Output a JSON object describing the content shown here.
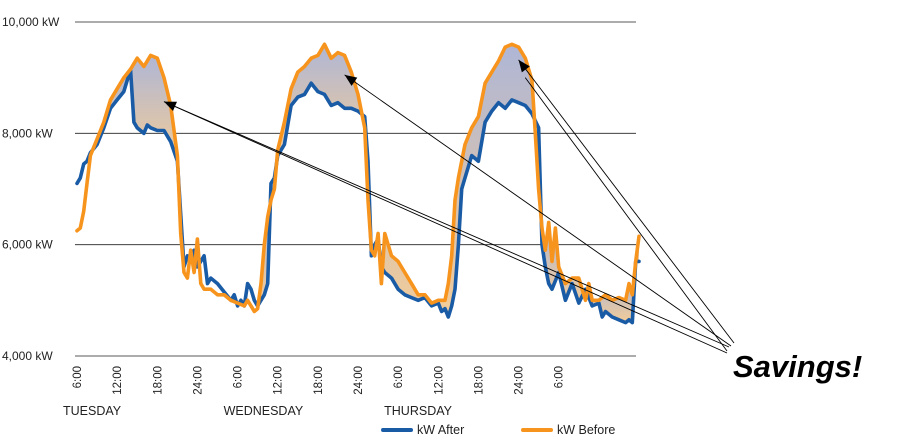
{
  "chart_data": {
    "type": "line",
    "y_tick_labels": [
      "10,000 kW",
      "8,000 kW",
      "6,000 kW",
      "4,000 kW"
    ],
    "y_ticks": [
      10000,
      8000,
      6000,
      4000
    ],
    "ylim": [
      4000,
      10000
    ],
    "x_tick_labels": [
      "6:00",
      "12:00",
      "18:00",
      "24:00",
      "6:00",
      "12:00",
      "18:00",
      "24:00",
      "6:00",
      "12:00",
      "18:00",
      "24:00",
      "6:00"
    ],
    "day_labels": [
      {
        "label": "TUESDAY",
        "tick_index": 0
      },
      {
        "label": "WEDNESDAY",
        "tick_index": 4
      },
      {
        "label": "THURSDAY",
        "tick_index": 8
      }
    ],
    "hours_range": [
      0,
      72
    ],
    "series": [
      {
        "name": "kW  After",
        "color": "#1a5ba6",
        "points": [
          [
            0,
            7100
          ],
          [
            0.5,
            7200
          ],
          [
            1,
            7450
          ],
          [
            1.5,
            7500
          ],
          [
            2,
            7650
          ],
          [
            3,
            7800
          ],
          [
            4,
            8100
          ],
          [
            5,
            8450
          ],
          [
            6,
            8600
          ],
          [
            7,
            8750
          ],
          [
            8,
            9150
          ],
          [
            8.5,
            8200
          ],
          [
            9,
            8100
          ],
          [
            10,
            8000
          ],
          [
            10.5,
            8150
          ],
          [
            11,
            8100
          ],
          [
            12,
            8050
          ],
          [
            13,
            8050
          ],
          [
            14,
            7850
          ],
          [
            15,
            7500
          ],
          [
            16,
            5600
          ],
          [
            16.5,
            5800
          ],
          [
            17,
            5700
          ],
          [
            17.5,
            5900
          ],
          [
            18,
            5600
          ],
          [
            19,
            5800
          ],
          [
            19.5,
            5300
          ],
          [
            20,
            5400
          ],
          [
            21,
            5300
          ],
          [
            22,
            5150
          ],
          [
            23,
            5000
          ],
          [
            23.5,
            5100
          ],
          [
            24,
            4900
          ],
          [
            24.5,
            5000
          ],
          [
            25,
            4900
          ],
          [
            25.5,
            5300
          ],
          [
            26,
            5200
          ],
          [
            26.5,
            5000
          ],
          [
            27,
            4900
          ],
          [
            28,
            5100
          ],
          [
            28.5,
            5300
          ],
          [
            29,
            7100
          ],
          [
            29.5,
            7200
          ],
          [
            30,
            7600
          ],
          [
            31,
            7800
          ],
          [
            32,
            8500
          ],
          [
            33,
            8650
          ],
          [
            34,
            8700
          ],
          [
            35,
            8900
          ],
          [
            36,
            8750
          ],
          [
            37,
            8700
          ],
          [
            38,
            8500
          ],
          [
            39,
            8550
          ],
          [
            40,
            8450
          ],
          [
            41,
            8450
          ],
          [
            42,
            8400
          ],
          [
            43,
            8300
          ],
          [
            43.5,
            7500
          ],
          [
            44,
            5800
          ],
          [
            44.5,
            6000
          ],
          [
            45,
            6100
          ],
          [
            45.5,
            5600
          ],
          [
            46,
            5500
          ],
          [
            47,
            5400
          ],
          [
            48,
            5200
          ],
          [
            49,
            5100
          ],
          [
            50,
            5050
          ],
          [
            51,
            5000
          ],
          [
            52,
            5050
          ],
          [
            53,
            4900
          ],
          [
            54,
            4950
          ],
          [
            54.5,
            4800
          ],
          [
            55,
            4850
          ],
          [
            55.5,
            4700
          ],
          [
            56,
            4900
          ],
          [
            56.5,
            5200
          ],
          [
            57,
            6000
          ],
          [
            57.5,
            7000
          ],
          [
            58,
            7200
          ],
          [
            59,
            7600
          ],
          [
            60,
            7500
          ],
          [
            61,
            8200
          ],
          [
            62,
            8400
          ],
          [
            63,
            8550
          ],
          [
            64,
            8450
          ],
          [
            65,
            8600
          ],
          [
            66,
            8550
          ],
          [
            67,
            8500
          ],
          [
            68,
            8350
          ],
          [
            69,
            8100
          ],
          [
            69.5,
            6000
          ],
          [
            70,
            5600
          ],
          [
            70.5,
            5300
          ],
          [
            71,
            5200
          ],
          [
            72,
            5500
          ],
          [
            73,
            5000
          ],
          [
            74,
            5300
          ],
          [
            75,
            4950
          ],
          [
            76,
            5200
          ],
          [
            77,
            4900
          ],
          [
            78,
            4950
          ],
          [
            78.5,
            4700
          ],
          [
            79,
            4800
          ],
          [
            80,
            4700
          ],
          [
            81,
            4650
          ],
          [
            82,
            4600
          ],
          [
            82.5,
            4650
          ],
          [
            83,
            4600
          ],
          [
            83.5,
            5700
          ],
          [
            84,
            5700
          ]
        ]
      },
      {
        "name": "kW  Before",
        "color": "#f7941d",
        "points": [
          [
            0,
            6250
          ],
          [
            0.5,
            6300
          ],
          [
            1,
            6600
          ],
          [
            1.5,
            7100
          ],
          [
            2,
            7600
          ],
          [
            3,
            7900
          ],
          [
            4,
            8200
          ],
          [
            5,
            8600
          ],
          [
            6,
            8800
          ],
          [
            7,
            9000
          ],
          [
            8,
            9150
          ],
          [
            9,
            9350
          ],
          [
            10,
            9200
          ],
          [
            11,
            9400
          ],
          [
            12,
            9350
          ],
          [
            13,
            9000
          ],
          [
            14,
            8500
          ],
          [
            15,
            7600
          ],
          [
            15.5,
            6200
          ],
          [
            16,
            5500
          ],
          [
            16.5,
            5400
          ],
          [
            17,
            5900
          ],
          [
            17.5,
            5500
          ],
          [
            18,
            6100
          ],
          [
            18.5,
            5300
          ],
          [
            19,
            5200
          ],
          [
            20,
            5200
          ],
          [
            21,
            5100
          ],
          [
            22,
            5100
          ],
          [
            23,
            5000
          ],
          [
            24,
            4950
          ],
          [
            25,
            4900
          ],
          [
            25.5,
            5000
          ],
          [
            26,
            4900
          ],
          [
            26.5,
            4800
          ],
          [
            27,
            4850
          ],
          [
            27.5,
            5300
          ],
          [
            28,
            6000
          ],
          [
            28.5,
            6500
          ],
          [
            29,
            6800
          ],
          [
            29.5,
            7000
          ],
          [
            30,
            7700
          ],
          [
            31,
            8200
          ],
          [
            32,
            8800
          ],
          [
            33,
            9100
          ],
          [
            34,
            9200
          ],
          [
            35,
            9350
          ],
          [
            36,
            9400
          ],
          [
            37,
            9600
          ],
          [
            38,
            9350
          ],
          [
            39,
            9450
          ],
          [
            40,
            9400
          ],
          [
            41,
            9100
          ],
          [
            42,
            8700
          ],
          [
            43,
            8100
          ],
          [
            43.5,
            6800
          ],
          [
            44,
            5900
          ],
          [
            44.5,
            5800
          ],
          [
            45,
            6200
          ],
          [
            45.5,
            5300
          ],
          [
            46,
            6200
          ],
          [
            47,
            5800
          ],
          [
            48,
            5700
          ],
          [
            49,
            5500
          ],
          [
            50,
            5300
          ],
          [
            51,
            5100
          ],
          [
            52,
            5100
          ],
          [
            53,
            4950
          ],
          [
            54,
            5000
          ],
          [
            55,
            5000
          ],
          [
            55.5,
            5300
          ],
          [
            56,
            5800
          ],
          [
            56.5,
            6800
          ],
          [
            57,
            7200
          ],
          [
            58,
            7800
          ],
          [
            59,
            8100
          ],
          [
            60,
            8300
          ],
          [
            61,
            8900
          ],
          [
            62,
            9100
          ],
          [
            63,
            9300
          ],
          [
            64,
            9550
          ],
          [
            65,
            9600
          ],
          [
            66,
            9550
          ],
          [
            67,
            9350
          ],
          [
            68,
            8950
          ],
          [
            68.5,
            8000
          ],
          [
            69,
            7000
          ],
          [
            69.5,
            6300
          ],
          [
            70,
            5900
          ],
          [
            70.5,
            6400
          ],
          [
            71,
            5700
          ],
          [
            71.5,
            6300
          ],
          [
            72,
            5600
          ],
          [
            73,
            5300
          ],
          [
            74,
            5400
          ],
          [
            75,
            5400
          ],
          [
            76,
            5000
          ],
          [
            76.5,
            5300
          ],
          [
            77,
            5000
          ],
          [
            78,
            5000
          ],
          [
            79,
            5100
          ],
          [
            80,
            5000
          ],
          [
            81,
            5050
          ],
          [
            82,
            5000
          ],
          [
            82.5,
            5300
          ],
          [
            83,
            5100
          ],
          [
            83.5,
            5700
          ],
          [
            84,
            6150
          ]
        ]
      }
    ],
    "arrow_tips": [
      {
        "hour": 13,
        "kw": 8570
      },
      {
        "hour": 40,
        "kw": 9050
      },
      {
        "hour": 66,
        "kw": 9320
      }
    ],
    "x_axis_hours_max": 84,
    "grid": true,
    "legend_placement": "bottom-right",
    "annotation": "Savings!",
    "colors": {
      "after": "#1a5ba6",
      "before": "#f7941d",
      "savings_fill_top": "#aeb6d6",
      "savings_fill_bottom": "#f3cc98"
    }
  }
}
